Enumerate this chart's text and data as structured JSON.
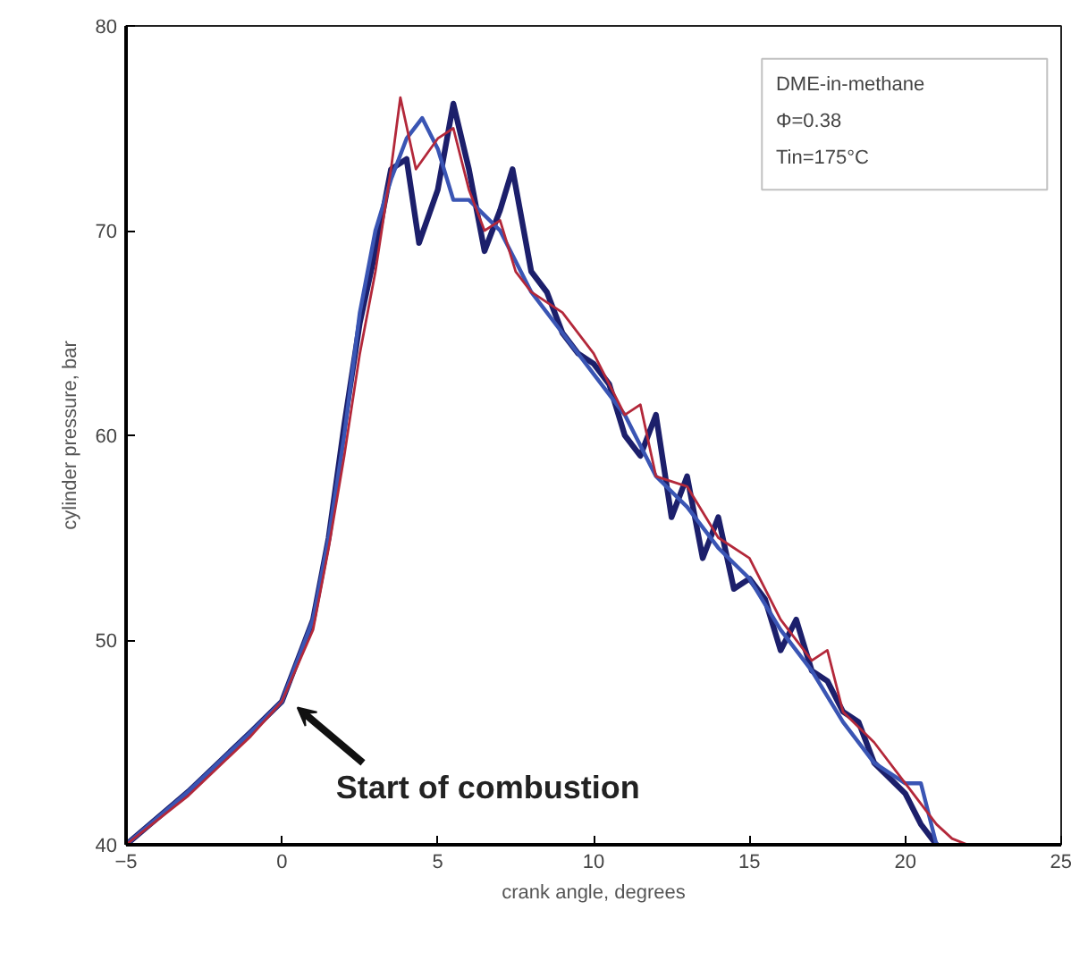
{
  "chart_data": {
    "type": "line",
    "xlabel": "crank angle, degrees",
    "ylabel": "cylinder pressure, bar",
    "xlim": [
      -5,
      25
    ],
    "xticks": [
      -5,
      0,
      5,
      10,
      15,
      20,
      25
    ],
    "ylim": [
      40,
      80
    ],
    "yticks": [
      40,
      50,
      60,
      70,
      80
    ],
    "grid": false,
    "line_style": "solid",
    "marker": "none",
    "annotations": [
      "DME-in-methane",
      "Φ=0.38",
      "Tin=175°C",
      {
        "text": "Start of combustion",
        "x": 0.3,
        "y": 47
      }
    ],
    "series": [
      {
        "color": "#1c1f6b",
        "x": [
          -5,
          -3,
          -1,
          0,
          1,
          1.5,
          2,
          2.5,
          3,
          3.5,
          4,
          4.4,
          5,
          5.5,
          6,
          6.5,
          7,
          7.4,
          8,
          8.5,
          9,
          9.5,
          10,
          10.5,
          11,
          11.5,
          12,
          12.5,
          13,
          13.5,
          14,
          14.5,
          15,
          15.5,
          16,
          16.5,
          17,
          17.5,
          18,
          18.5,
          19,
          20,
          20.5,
          21
        ],
        "values": [
          40,
          42.6,
          45.5,
          47,
          51,
          55,
          60.5,
          65.5,
          69,
          73,
          73.5,
          69.4,
          72,
          76.2,
          73,
          69,
          71,
          73,
          68,
          67,
          65,
          64,
          63.5,
          62.5,
          60,
          59,
          61,
          56,
          58,
          54,
          56,
          52.5,
          53,
          52,
          49.5,
          51,
          48.5,
          48,
          46.5,
          46,
          44,
          42.5,
          41,
          40
        ]
      },
      {
        "color": "#3a55b4",
        "x": [
          -5,
          -3,
          -1,
          0,
          1,
          1.5,
          2,
          2.5,
          3,
          3.5,
          4,
          4.5,
          5,
          5.5,
          6,
          7,
          8,
          9,
          10,
          11,
          12,
          13,
          14,
          15,
          16,
          17,
          18,
          19,
          20,
          20.5,
          21
        ],
        "values": [
          40,
          42.6,
          45.5,
          47,
          51,
          55,
          60,
          66,
          70,
          72.5,
          74.5,
          75.5,
          74,
          71.5,
          71.5,
          70,
          67,
          65,
          63,
          61,
          58,
          56.5,
          54.5,
          53,
          50.5,
          48.5,
          46,
          44,
          43,
          43,
          40
        ]
      },
      {
        "color": "#b3283a",
        "x": [
          -5,
          -3,
          -1,
          0,
          1,
          1.5,
          2,
          2.5,
          3,
          3.5,
          3.8,
          4.3,
          5,
          5.5,
          6,
          6.5,
          7,
          7.5,
          8,
          9,
          10,
          11,
          11.5,
          12,
          13,
          14,
          15,
          16,
          17,
          17.5,
          18,
          19,
          20,
          21,
          21.5,
          22
        ],
        "values": [
          40,
          42.4,
          45.3,
          47,
          50.5,
          54.5,
          59,
          64,
          68,
          73,
          76.5,
          73,
          74.5,
          75,
          72,
          70,
          70.5,
          68,
          67,
          66,
          64,
          61,
          61.5,
          58,
          57.5,
          55,
          54,
          51,
          49,
          49.5,
          46.5,
          45,
          43,
          41,
          40.3,
          40
        ]
      }
    ]
  }
}
